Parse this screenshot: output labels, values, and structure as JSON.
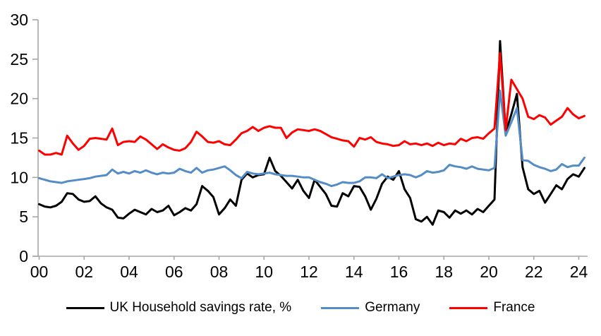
{
  "chart_data": {
    "type": "line",
    "title": "",
    "xlabel": "",
    "ylabel": "",
    "grid": false,
    "legend_position": "bottom",
    "background_color": "#ffffff",
    "axis_line_color": "#a6a6a6",
    "tick_label_color": "#000000",
    "ylim": [
      0,
      30
    ],
    "y_ticks": [
      0,
      5,
      10,
      15,
      20,
      25,
      30
    ],
    "x_start_year": 2000.0,
    "x_step_years": 0.25,
    "x_end_year": 2024.25,
    "x_tick_years": [
      2000,
      2002,
      2004,
      2006,
      2008,
      2010,
      2012,
      2014,
      2016,
      2018,
      2020,
      2022,
      2024
    ],
    "x_tick_labels": [
      "00",
      "02",
      "04",
      "06",
      "08",
      "10",
      "12",
      "14",
      "16",
      "18",
      "20",
      "22",
      "24"
    ],
    "frequency": "quarterly",
    "series": [
      {
        "name": "UK Household savings rate, %",
        "color": "#000000",
        "values": [
          6.6,
          6.3,
          6.2,
          6.4,
          6.9,
          8.0,
          7.9,
          7.2,
          6.9,
          7.0,
          7.6,
          6.7,
          6.2,
          5.9,
          4.9,
          4.8,
          5.4,
          5.9,
          5.6,
          5.3,
          6.0,
          5.6,
          5.8,
          6.4,
          5.2,
          5.6,
          6.1,
          5.8,
          6.6,
          8.9,
          8.3,
          7.5,
          5.3,
          6.1,
          7.2,
          6.4,
          9.7,
          10.5,
          10.0,
          10.3,
          10.4,
          12.5,
          10.8,
          10.2,
          9.4,
          8.6,
          9.7,
          8.3,
          7.4,
          9.7,
          8.8,
          7.9,
          6.4,
          6.3,
          8.0,
          7.6,
          8.9,
          8.8,
          7.6,
          5.9,
          7.3,
          9.2,
          10.1,
          9.7,
          10.8,
          8.5,
          7.4,
          4.7,
          4.4,
          5.0,
          4.0,
          5.8,
          5.6,
          4.9,
          5.8,
          5.4,
          5.8,
          5.3,
          6.0,
          5.6,
          6.4,
          7.2,
          27.3,
          15.7,
          18.0,
          20.6,
          11.3,
          8.5,
          7.9,
          8.3,
          6.8,
          7.9,
          9.0,
          8.5,
          9.8,
          10.4,
          10.1,
          11.2
        ]
      },
      {
        "name": "Germany",
        "color": "#548dc6",
        "values": [
          9.9,
          9.7,
          9.5,
          9.4,
          9.3,
          9.5,
          9.6,
          9.7,
          9.8,
          9.9,
          10.1,
          10.2,
          10.3,
          11.0,
          10.5,
          10.7,
          10.5,
          10.8,
          10.6,
          10.9,
          10.6,
          10.4,
          10.6,
          10.5,
          10.6,
          11.1,
          10.8,
          10.6,
          11.2,
          10.6,
          10.9,
          11.0,
          11.2,
          11.4,
          10.9,
          10.3,
          9.9,
          10.7,
          10.5,
          10.4,
          10.5,
          10.6,
          10.4,
          10.3,
          10.2,
          10.2,
          10.1,
          10.0,
          10.0,
          9.7,
          9.4,
          9.2,
          8.9,
          9.1,
          9.4,
          9.3,
          9.3,
          9.5,
          10.0,
          10.0,
          9.9,
          10.4,
          9.9,
          10.1,
          10.3,
          10.4,
          10.3,
          10.0,
          10.3,
          10.8,
          10.6,
          10.7,
          10.9,
          11.6,
          11.4,
          11.3,
          11.1,
          11.4,
          11.1,
          11.0,
          10.9,
          11.2,
          21.0,
          15.3,
          17.0,
          18.8,
          12.2,
          12.1,
          11.6,
          11.3,
          11.1,
          10.8,
          11.0,
          11.7,
          11.3,
          11.5,
          11.5,
          12.5
        ]
      },
      {
        "name": "France",
        "color": "#ff0000",
        "values": [
          13.4,
          12.9,
          12.9,
          13.1,
          12.9,
          15.3,
          14.3,
          13.5,
          14.0,
          14.9,
          15.0,
          14.9,
          14.8,
          16.2,
          14.1,
          14.5,
          14.6,
          14.5,
          15.2,
          14.8,
          14.2,
          13.6,
          14.2,
          13.8,
          13.5,
          13.4,
          13.7,
          14.5,
          15.8,
          15.2,
          14.5,
          14.4,
          14.6,
          14.2,
          14.1,
          14.8,
          15.6,
          15.9,
          16.4,
          15.9,
          16.3,
          16.5,
          16.3,
          16.3,
          15.0,
          15.7,
          16.1,
          16.0,
          15.9,
          16.1,
          15.9,
          15.5,
          15.1,
          14.9,
          14.7,
          14.6,
          13.9,
          15.0,
          14.8,
          15.1,
          14.5,
          14.3,
          14.2,
          14.0,
          14.1,
          14.6,
          14.2,
          14.3,
          14.1,
          14.3,
          14.0,
          14.4,
          14.1,
          14.3,
          14.2,
          14.9,
          14.6,
          15.0,
          15.1,
          14.9,
          15.6,
          16.2,
          25.8,
          16.0,
          22.4,
          21.2,
          20.0,
          17.7,
          17.4,
          17.9,
          17.6,
          16.7,
          17.2,
          17.7,
          18.8,
          18.0,
          17.5,
          17.8
        ]
      }
    ]
  },
  "legend": {
    "uk_label": "UK Household savings rate, %",
    "germany_label": "Germany",
    "france_label": "France"
  }
}
